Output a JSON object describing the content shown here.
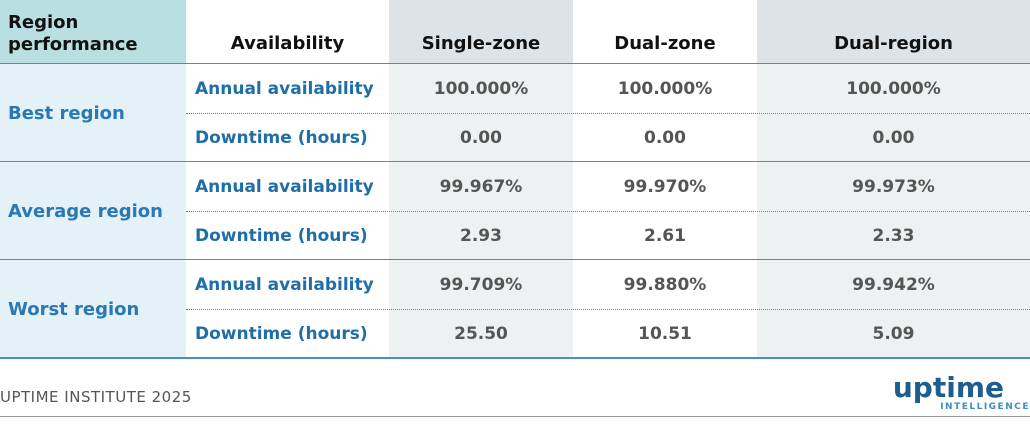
{
  "table": {
    "columns": [
      "Region performance",
      "Availability",
      "Single-zone",
      "Dual-zone",
      "Dual-region"
    ],
    "groups": [
      {
        "region": "Best region",
        "rows": [
          [
            "Annual availability",
            "100.000%",
            "100.000%",
            "100.000%"
          ],
          [
            "Downtime (hours)",
            "0.00",
            "0.00",
            "0.00"
          ]
        ]
      },
      {
        "region": "Average region",
        "rows": [
          [
            "Annual availability",
            "99.967%",
            "99.970%",
            "99.973%"
          ],
          [
            "Downtime (hours)",
            "2.93",
            "2.61",
            "2.33"
          ]
        ]
      },
      {
        "region": "Worst region",
        "rows": [
          [
            "Annual availability",
            "99.709%",
            "99.880%",
            "99.942%"
          ],
          [
            "Downtime (hours)",
            "25.50",
            "10.51",
            "5.09"
          ]
        ]
      }
    ]
  },
  "footer": {
    "source": "UPTIME INSTITUTE 2025",
    "logo": "uptime",
    "logo_sub": "INTELLIGENCE"
  }
}
